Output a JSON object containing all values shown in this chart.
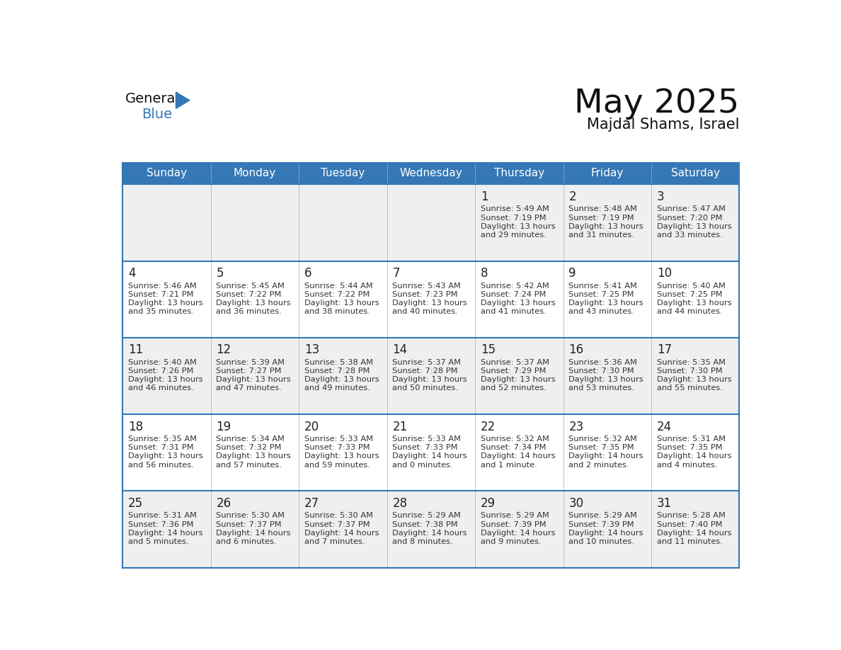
{
  "title": "May 2025",
  "subtitle": "Majdal Shams, Israel",
  "header_bg": "#3578B5",
  "header_text": "#FFFFFF",
  "day_names": [
    "Sunday",
    "Monday",
    "Tuesday",
    "Wednesday",
    "Thursday",
    "Friday",
    "Saturday"
  ],
  "row_bg_odd": "#EFEFEF",
  "row_bg_even": "#FFFFFF",
  "number_color": "#222222",
  "info_color": "#333333",
  "logo_general_color": "#111111",
  "logo_blue_color": "#3578B5",
  "weeks": [
    {
      "days": [
        {
          "date": "",
          "sunrise": "",
          "sunset": "",
          "daylight_h": "",
          "daylight_m": ""
        },
        {
          "date": "",
          "sunrise": "",
          "sunset": "",
          "daylight_h": "",
          "daylight_m": ""
        },
        {
          "date": "",
          "sunrise": "",
          "sunset": "",
          "daylight_h": "",
          "daylight_m": ""
        },
        {
          "date": "",
          "sunrise": "",
          "sunset": "",
          "daylight_h": "",
          "daylight_m": ""
        },
        {
          "date": "1",
          "sunrise": "5:49 AM",
          "sunset": "7:19 PM",
          "daylight_h": "13 hours",
          "daylight_m": "and 29 minutes."
        },
        {
          "date": "2",
          "sunrise": "5:48 AM",
          "sunset": "7:19 PM",
          "daylight_h": "13 hours",
          "daylight_m": "and 31 minutes."
        },
        {
          "date": "3",
          "sunrise": "5:47 AM",
          "sunset": "7:20 PM",
          "daylight_h": "13 hours",
          "daylight_m": "and 33 minutes."
        }
      ]
    },
    {
      "days": [
        {
          "date": "4",
          "sunrise": "5:46 AM",
          "sunset": "7:21 PM",
          "daylight_h": "13 hours",
          "daylight_m": "and 35 minutes."
        },
        {
          "date": "5",
          "sunrise": "5:45 AM",
          "sunset": "7:22 PM",
          "daylight_h": "13 hours",
          "daylight_m": "and 36 minutes."
        },
        {
          "date": "6",
          "sunrise": "5:44 AM",
          "sunset": "7:22 PM",
          "daylight_h": "13 hours",
          "daylight_m": "and 38 minutes."
        },
        {
          "date": "7",
          "sunrise": "5:43 AM",
          "sunset": "7:23 PM",
          "daylight_h": "13 hours",
          "daylight_m": "and 40 minutes."
        },
        {
          "date": "8",
          "sunrise": "5:42 AM",
          "sunset": "7:24 PM",
          "daylight_h": "13 hours",
          "daylight_m": "and 41 minutes."
        },
        {
          "date": "9",
          "sunrise": "5:41 AM",
          "sunset": "7:25 PM",
          "daylight_h": "13 hours",
          "daylight_m": "and 43 minutes."
        },
        {
          "date": "10",
          "sunrise": "5:40 AM",
          "sunset": "7:25 PM",
          "daylight_h": "13 hours",
          "daylight_m": "and 44 minutes."
        }
      ]
    },
    {
      "days": [
        {
          "date": "11",
          "sunrise": "5:40 AM",
          "sunset": "7:26 PM",
          "daylight_h": "13 hours",
          "daylight_m": "and 46 minutes."
        },
        {
          "date": "12",
          "sunrise": "5:39 AM",
          "sunset": "7:27 PM",
          "daylight_h": "13 hours",
          "daylight_m": "and 47 minutes."
        },
        {
          "date": "13",
          "sunrise": "5:38 AM",
          "sunset": "7:28 PM",
          "daylight_h": "13 hours",
          "daylight_m": "and 49 minutes."
        },
        {
          "date": "14",
          "sunrise": "5:37 AM",
          "sunset": "7:28 PM",
          "daylight_h": "13 hours",
          "daylight_m": "and 50 minutes."
        },
        {
          "date": "15",
          "sunrise": "5:37 AM",
          "sunset": "7:29 PM",
          "daylight_h": "13 hours",
          "daylight_m": "and 52 minutes."
        },
        {
          "date": "16",
          "sunrise": "5:36 AM",
          "sunset": "7:30 PM",
          "daylight_h": "13 hours",
          "daylight_m": "and 53 minutes."
        },
        {
          "date": "17",
          "sunrise": "5:35 AM",
          "sunset": "7:30 PM",
          "daylight_h": "13 hours",
          "daylight_m": "and 55 minutes."
        }
      ]
    },
    {
      "days": [
        {
          "date": "18",
          "sunrise": "5:35 AM",
          "sunset": "7:31 PM",
          "daylight_h": "13 hours",
          "daylight_m": "and 56 minutes."
        },
        {
          "date": "19",
          "sunrise": "5:34 AM",
          "sunset": "7:32 PM",
          "daylight_h": "13 hours",
          "daylight_m": "and 57 minutes."
        },
        {
          "date": "20",
          "sunrise": "5:33 AM",
          "sunset": "7:33 PM",
          "daylight_h": "13 hours",
          "daylight_m": "and 59 minutes."
        },
        {
          "date": "21",
          "sunrise": "5:33 AM",
          "sunset": "7:33 PM",
          "daylight_h": "14 hours",
          "daylight_m": "and 0 minutes."
        },
        {
          "date": "22",
          "sunrise": "5:32 AM",
          "sunset": "7:34 PM",
          "daylight_h": "14 hours",
          "daylight_m": "and 1 minute."
        },
        {
          "date": "23",
          "sunrise": "5:32 AM",
          "sunset": "7:35 PM",
          "daylight_h": "14 hours",
          "daylight_m": "and 2 minutes."
        },
        {
          "date": "24",
          "sunrise": "5:31 AM",
          "sunset": "7:35 PM",
          "daylight_h": "14 hours",
          "daylight_m": "and 4 minutes."
        }
      ]
    },
    {
      "days": [
        {
          "date": "25",
          "sunrise": "5:31 AM",
          "sunset": "7:36 PM",
          "daylight_h": "14 hours",
          "daylight_m": "and 5 minutes."
        },
        {
          "date": "26",
          "sunrise": "5:30 AM",
          "sunset": "7:37 PM",
          "daylight_h": "14 hours",
          "daylight_m": "and 6 minutes."
        },
        {
          "date": "27",
          "sunrise": "5:30 AM",
          "sunset": "7:37 PM",
          "daylight_h": "14 hours",
          "daylight_m": "and 7 minutes."
        },
        {
          "date": "28",
          "sunrise": "5:29 AM",
          "sunset": "7:38 PM",
          "daylight_h": "14 hours",
          "daylight_m": "and 8 minutes."
        },
        {
          "date": "29",
          "sunrise": "5:29 AM",
          "sunset": "7:39 PM",
          "daylight_h": "14 hours",
          "daylight_m": "and 9 minutes."
        },
        {
          "date": "30",
          "sunrise": "5:29 AM",
          "sunset": "7:39 PM",
          "daylight_h": "14 hours",
          "daylight_m": "and 10 minutes."
        },
        {
          "date": "31",
          "sunrise": "5:28 AM",
          "sunset": "7:40 PM",
          "daylight_h": "14 hours",
          "daylight_m": "and 11 minutes."
        }
      ]
    }
  ]
}
